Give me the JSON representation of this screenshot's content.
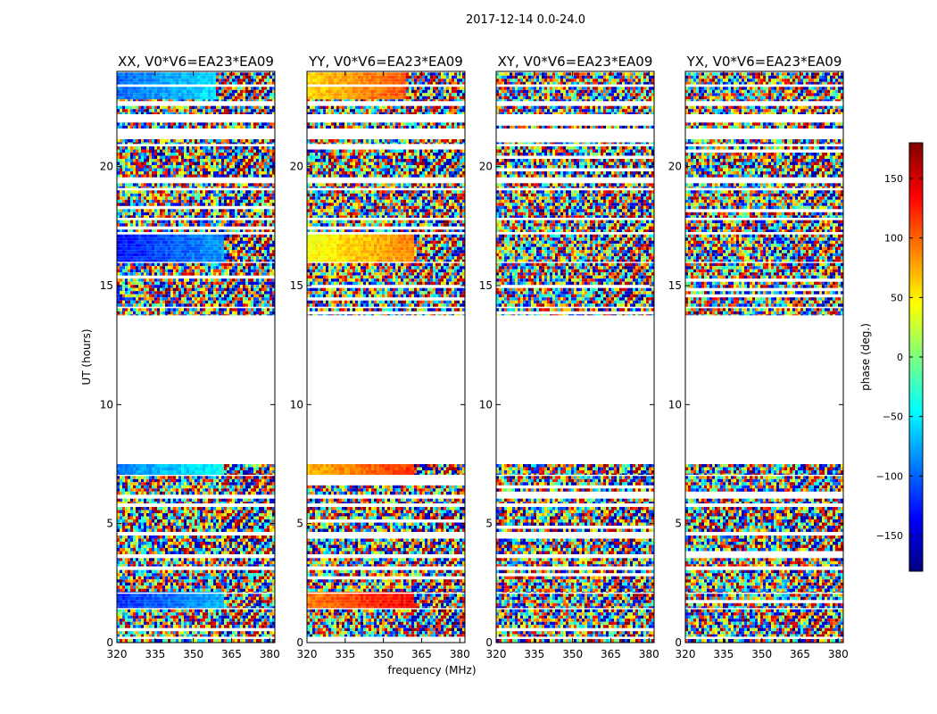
{
  "chart_data": {
    "type": "heatmap",
    "suptitle": "2017-12-14 0.0-24.0",
    "xlabel": "frequency (MHz)",
    "ylabel": "UT (hours)",
    "xlim": [
      320,
      382
    ],
    "ylim": [
      0,
      24
    ],
    "x_ticks": [
      320,
      335,
      350,
      365,
      380
    ],
    "y_ticks": [
      0,
      5,
      10,
      15,
      20
    ],
    "colorbar": {
      "label": "phase (deg.)",
      "range": [
        -180,
        180
      ],
      "ticks": [
        150,
        100,
        50,
        0,
        -50,
        -100,
        -150
      ],
      "tick_labels": [
        "150",
        "100",
        "50",
        "0",
        "−50",
        "−100",
        "−150"
      ],
      "colormap": "jet",
      "stops": [
        "#00007f",
        "#0000ff",
        "#007fff",
        "#00ffff",
        "#7fff7f",
        "#ffff00",
        "#ff7f00",
        "#ff0000",
        "#7f0000"
      ]
    },
    "data_gaps_hours": [
      [
        7.5,
        13.7
      ]
    ],
    "panels": [
      {
        "title": "XX, V0*V6=EA23*EA09",
        "phase_structure": [
          {
            "from": 16.0,
            "to": 17.1,
            "phase_deg": -130,
            "until_mhz": 362
          },
          {
            "from": 1.4,
            "to": 2.1,
            "phase_deg": -120,
            "until_mhz": 362
          },
          {
            "from": 22.8,
            "to": 23.9,
            "phase_deg": -100,
            "until_mhz": 358
          },
          {
            "from": 7.0,
            "to": 7.5,
            "phase_deg": -90,
            "until_mhz": 362
          }
        ]
      },
      {
        "title": "YY, V0*V6=EA23*EA09",
        "phase_structure": [
          {
            "from": 16.0,
            "to": 17.1,
            "phase_deg": 40,
            "until_mhz": 362
          },
          {
            "from": 1.4,
            "to": 2.1,
            "phase_deg": 90,
            "until_mhz": 362
          },
          {
            "from": 22.8,
            "to": 23.9,
            "phase_deg": 60,
            "until_mhz": 358
          },
          {
            "from": 7.0,
            "to": 7.5,
            "phase_deg": 70,
            "until_mhz": 362
          }
        ]
      },
      {
        "title": "XY, V0*V6=EA23*EA09",
        "phase_structure": []
      },
      {
        "title": "YX, V0*V6=EA23*EA09",
        "phase_structure": []
      }
    ]
  }
}
